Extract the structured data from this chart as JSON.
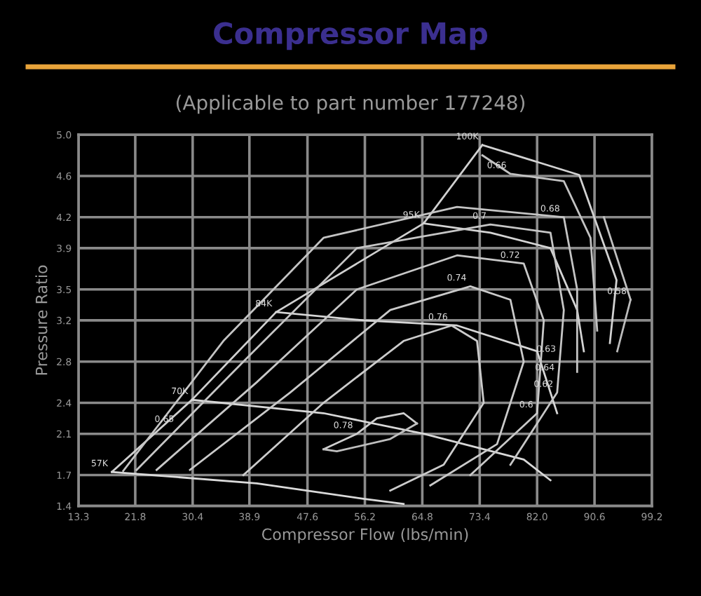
{
  "chart_data": {
    "type": "line",
    "title": "Compressor Map",
    "subtitle": "(Applicable to part number 177248)",
    "xlabel": "Compressor Flow (lbs/min)",
    "ylabel": "Pressure Ratio",
    "xlim": [
      13.3,
      99.2
    ],
    "ylim": [
      1.4,
      5.0
    ],
    "xticks": [
      13.3,
      21.8,
      30.4,
      38.9,
      47.6,
      56.2,
      64.8,
      73.4,
      {
        "value": 82.0,
        "label": "82.0"
      },
      90.6,
      99.2
    ],
    "yticks": [
      1.4,
      1.7,
      2.1,
      2.4,
      2.8,
      3.2,
      3.5,
      3.9,
      4.2,
      4.6,
      {
        "value": 5.0,
        "label": "5.0"
      }
    ],
    "grid": true,
    "series": [
      {
        "color": "#d0d0d0",
        "x": [
          18.3,
          30.3,
          42.9,
          65.0,
          73.8
        ],
        "values": [
          1.73,
          2.43,
          3.28,
          4.14,
          4.9
        ]
      },
      {
        "color": "#d2d2d2",
        "x": [
          73.8,
          88.3,
          93.9,
          92.9
        ],
        "values": [
          4.9,
          4.61,
          3.59,
          2.98
        ]
      },
      {
        "color": "#d4d4d4",
        "x": [
          65.0,
          75,
          84,
          88,
          89
        ],
        "values": [
          4.14,
          4.05,
          3.9,
          3.3,
          2.9
        ]
      },
      {
        "color": "#d6d6d6",
        "x": [
          42.9,
          56,
          70,
          82,
          85
        ],
        "values": [
          3.28,
          3.2,
          3.15,
          2.9,
          2.3
        ]
      },
      {
        "color": "#d8d8d8",
        "x": [
          30.3,
          50,
          65,
          80,
          84
        ],
        "values": [
          2.43,
          2.3,
          2.1,
          1.85,
          1.65
        ]
      },
      {
        "color": "#dadada",
        "x": [
          18.3,
          40,
          56,
          62
        ],
        "values": [
          1.73,
          1.62,
          1.47,
          1.42
        ]
      },
      {
        "color": "#cecece",
        "x": [
          50,
          55,
          58,
          62,
          64
        ],
        "values": [
          1.95,
          2.1,
          2.25,
          2.3,
          2.2
        ]
      },
      {
        "color": "#bebebe",
        "x": [
          50,
          52,
          60,
          64
        ],
        "values": [
          1.95,
          1.93,
          2.05,
          2.2
        ]
      },
      {
        "color": "#cccccc",
        "x": [
          38,
          50,
          62,
          69.2,
          73,
          74,
          68,
          60
        ],
        "values": [
          1.7,
          2.4,
          3.0,
          3.15,
          3.0,
          2.4,
          1.8,
          1.55
        ]
      },
      {
        "color": "#cacaca",
        "x": [
          30,
          45,
          60,
          72,
          78,
          80,
          76,
          66
        ],
        "values": [
          1.75,
          2.5,
          3.3,
          3.53,
          3.4,
          2.8,
          2.0,
          1.6
        ]
      },
      {
        "color": "#c8c8c8",
        "x": [
          25,
          40,
          55,
          70,
          80,
          83,
          82,
          72
        ],
        "values": [
          1.75,
          2.6,
          3.5,
          3.83,
          3.75,
          3.2,
          2.3,
          1.7
        ]
      },
      {
        "color": "#c6c6c6",
        "x": [
          22,
          38,
          55,
          75,
          84,
          86,
          85,
          78
        ],
        "values": [
          1.75,
          2.8,
          3.9,
          4.13,
          4.05,
          3.3,
          2.5,
          1.8
        ]
      },
      {
        "color": "#c4c4c4",
        "x": [
          20,
          35,
          50,
          70,
          86,
          88,
          88
        ],
        "values": [
          1.74,
          3.0,
          4.0,
          4.3,
          4.2,
          3.5,
          2.7
        ]
      },
      {
        "color": "#c2c2c2",
        "x": [
          73.8,
          78,
          86,
          90,
          91
        ],
        "values": [
          4.8,
          4.62,
          4.55,
          4.0,
          3.1
        ]
      },
      {
        "color": "#c0c0c0",
        "x": [
          92,
          94,
          96
        ],
        "values": [
          4.2,
          3.8,
          3.4
        ]
      },
      {
        "color": "#bcbcbc",
        "x": [
          94,
          96
        ],
        "values": [
          2.9,
          3.4
        ]
      }
    ],
    "annotations": [
      {
        "text": "57K",
        "x": 18.3,
        "y": 1.73
      },
      {
        "text": "70K",
        "x": 30.3,
        "y": 2.43
      },
      {
        "text": "84K",
        "x": 42.9,
        "y": 3.28
      },
      {
        "text": "95K",
        "x": 65.0,
        "y": 4.14
      },
      {
        "text": "100K",
        "x": 73.8,
        "y": 4.9
      },
      {
        "text": "0.66",
        "x": 78,
        "y": 4.62
      },
      {
        "text": "0.7",
        "x": 75,
        "y": 4.13
      },
      {
        "text": "0.68",
        "x": 86,
        "y": 4.2
      },
      {
        "text": "0.72",
        "x": 80,
        "y": 3.75
      },
      {
        "text": "0.74",
        "x": 72,
        "y": 3.53
      },
      {
        "text": "0.76",
        "x": 69.2,
        "y": 3.15
      },
      {
        "text": "0.58",
        "x": 96,
        "y": 3.4
      },
      {
        "text": "0.65",
        "x": 28.2,
        "y": 2.16
      },
      {
        "text": "0.78",
        "x": 55,
        "y": 2.1
      },
      {
        "text": "0.63",
        "x": 85.4,
        "y": 2.84
      },
      {
        "text": "0.64",
        "x": 85.2,
        "y": 2.66
      },
      {
        "text": "0.62",
        "x": 85,
        "y": 2.5
      },
      {
        "text": "0.6",
        "x": 82,
        "y": 2.3
      }
    ]
  }
}
